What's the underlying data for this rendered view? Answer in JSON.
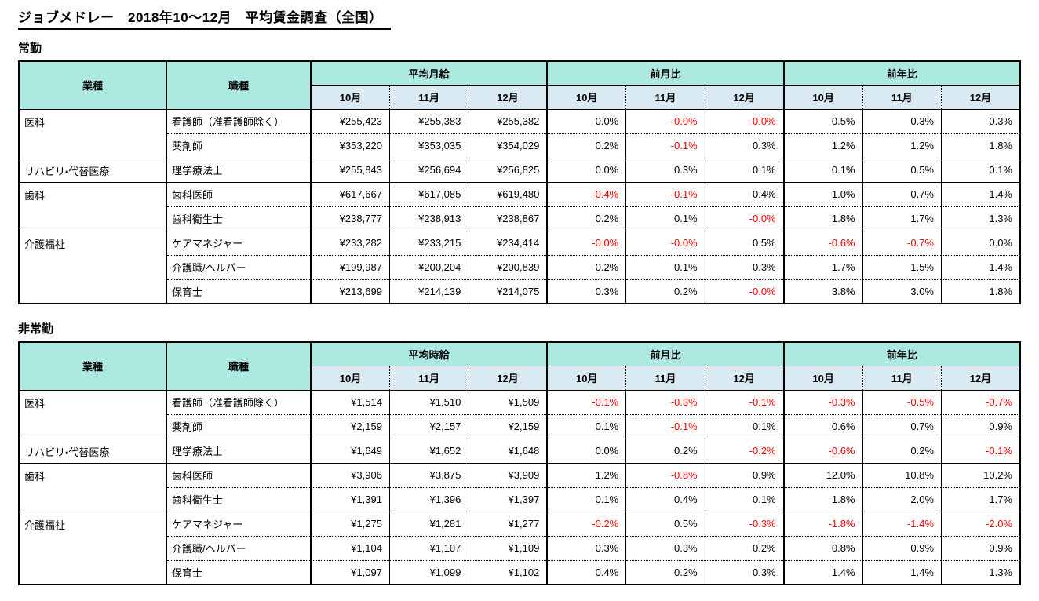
{
  "page": {
    "title": "ジョブメドレー　2018年10〜12月　平均賃金調査（全国）"
  },
  "colors": {
    "header_teal": "#ace9e1",
    "subheader_blue": "#d9eaf2",
    "negative_red": "#ff0000",
    "border_black": "#000000"
  },
  "tables": [
    {
      "section_label": "常勤",
      "headers": {
        "industry": "業種",
        "job": "職種",
        "value_group": "平均月給",
        "mom_group": "前月比",
        "yoy_group": "前年比",
        "months": [
          "10月",
          "11月",
          "12月"
        ]
      },
      "groups": [
        {
          "industry": "医科",
          "rows": [
            {
              "job": "看護師（准看護師除く）",
              "values": [
                "¥255,423",
                "¥255,383",
                "¥255,382"
              ],
              "mom": [
                "0.0%",
                "-0.0%",
                "-0.0%"
              ],
              "yoy": [
                "0.5%",
                "0.3%",
                "0.3%"
              ]
            },
            {
              "job": "薬剤師",
              "values": [
                "¥353,220",
                "¥353,035",
                "¥354,029"
              ],
              "mom": [
                "0.2%",
                "-0.1%",
                "0.3%"
              ],
              "yoy": [
                "1.2%",
                "1.2%",
                "1.8%"
              ]
            }
          ]
        },
        {
          "industry": "リハビリ・代替医療",
          "rows": [
            {
              "job": "理学療法士",
              "values": [
                "¥255,843",
                "¥256,694",
                "¥256,825"
              ],
              "mom": [
                "0.0%",
                "0.3%",
                "0.1%"
              ],
              "yoy": [
                "0.1%",
                "0.5%",
                "0.1%"
              ]
            }
          ]
        },
        {
          "industry": "歯科",
          "rows": [
            {
              "job": "歯科医師",
              "values": [
                "¥617,667",
                "¥617,085",
                "¥619,480"
              ],
              "mom": [
                "-0.4%",
                "-0.1%",
                "0.4%"
              ],
              "yoy": [
                "1.0%",
                "0.7%",
                "1.4%"
              ]
            },
            {
              "job": "歯科衛生士",
              "values": [
                "¥238,777",
                "¥238,913",
                "¥238,867"
              ],
              "mom": [
                "0.2%",
                "0.1%",
                "-0.0%"
              ],
              "yoy": [
                "1.8%",
                "1.7%",
                "1.3%"
              ]
            }
          ]
        },
        {
          "industry": "介護福祉",
          "rows": [
            {
              "job": "ケアマネジャー",
              "values": [
                "¥233,282",
                "¥233,215",
                "¥234,414"
              ],
              "mom": [
                "-0.0%",
                "-0.0%",
                "0.5%"
              ],
              "yoy": [
                "-0.6%",
                "-0.7%",
                "0.0%"
              ]
            },
            {
              "job": "介護職/ヘルパー",
              "values": [
                "¥199,987",
                "¥200,204",
                "¥200,839"
              ],
              "mom": [
                "0.2%",
                "0.1%",
                "0.3%"
              ],
              "yoy": [
                "1.7%",
                "1.5%",
                "1.4%"
              ]
            },
            {
              "job": "保育士",
              "values": [
                "¥213,699",
                "¥214,139",
                "¥214,075"
              ],
              "mom": [
                "0.3%",
                "0.2%",
                "-0.0%"
              ],
              "yoy": [
                "3.8%",
                "3.0%",
                "1.8%"
              ]
            }
          ]
        }
      ]
    },
    {
      "section_label": "非常勤",
      "headers": {
        "industry": "業種",
        "job": "職種",
        "value_group": "平均時給",
        "mom_group": "前月比",
        "yoy_group": "前年比",
        "months": [
          "10月",
          "11月",
          "12月"
        ]
      },
      "groups": [
        {
          "industry": "医科",
          "rows": [
            {
              "job": "看護師（准看護師除く）",
              "values": [
                "¥1,514",
                "¥1,510",
                "¥1,509"
              ],
              "mom": [
                "-0.1%",
                "-0.3%",
                "-0.1%"
              ],
              "yoy": [
                "-0.3%",
                "-0.5%",
                "-0.7%"
              ]
            },
            {
              "job": "薬剤師",
              "values": [
                "¥2,159",
                "¥2,157",
                "¥2,159"
              ],
              "mom": [
                "0.1%",
                "-0.1%",
                "0.1%"
              ],
              "yoy": [
                "0.6%",
                "0.7%",
                "0.9%"
              ]
            }
          ]
        },
        {
          "industry": "リハビリ・代替医療",
          "rows": [
            {
              "job": "理学療法士",
              "values": [
                "¥1,649",
                "¥1,652",
                "¥1,648"
              ],
              "mom": [
                "0.0%",
                "0.2%",
                "-0.2%"
              ],
              "yoy": [
                "-0.6%",
                "0.2%",
                "-0.1%"
              ]
            }
          ]
        },
        {
          "industry": "歯科",
          "rows": [
            {
              "job": "歯科医師",
              "values": [
                "¥3,906",
                "¥3,875",
                "¥3,909"
              ],
              "mom": [
                "1.2%",
                "-0.8%",
                "0.9%"
              ],
              "yoy": [
                "12.0%",
                "10.8%",
                "10.2%"
              ]
            },
            {
              "job": "歯科衛生士",
              "values": [
                "¥1,391",
                "¥1,396",
                "¥1,397"
              ],
              "mom": [
                "0.1%",
                "0.4%",
                "0.1%"
              ],
              "yoy": [
                "1.8%",
                "2.0%",
                "1.7%"
              ]
            }
          ]
        },
        {
          "industry": "介護福祉",
          "rows": [
            {
              "job": "ケアマネジャー",
              "values": [
                "¥1,275",
                "¥1,281",
                "¥1,277"
              ],
              "mom": [
                "-0.2%",
                "0.5%",
                "-0.3%"
              ],
              "yoy": [
                "-1.8%",
                "-1.4%",
                "-2.0%"
              ]
            },
            {
              "job": "介護職/ヘルパー",
              "values": [
                "¥1,104",
                "¥1,107",
                "¥1,109"
              ],
              "mom": [
                "0.3%",
                "0.3%",
                "0.2%"
              ],
              "yoy": [
                "0.8%",
                "0.9%",
                "0.9%"
              ]
            },
            {
              "job": "保育士",
              "values": [
                "¥1,097",
                "¥1,099",
                "¥1,102"
              ],
              "mom": [
                "0.4%",
                "0.2%",
                "0.3%"
              ],
              "yoy": [
                "1.4%",
                "1.4%",
                "1.3%"
              ]
            }
          ]
        }
      ]
    }
  ]
}
